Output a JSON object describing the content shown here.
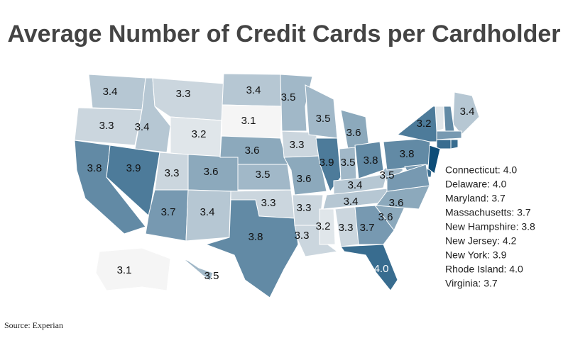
{
  "title": "Average Number of Credit Cards per Cardholder",
  "map": {
    "values": [
      3.4,
      3.3,
      3.8,
      3.9,
      3.4,
      3.3,
      3.2,
      3.3,
      3.7,
      3.6,
      3.4,
      3.4,
      3.1,
      3.6,
      3.5,
      3.3,
      3.8,
      3.5,
      3.3,
      3.6,
      3.3,
      3.3,
      3.5,
      3.9,
      3.6,
      3.5,
      3.8,
      3.4,
      3.4,
      3.2,
      3.3,
      3.7,
      4.0,
      3.6,
      3.6,
      3.5,
      3.8,
      3.2,
      3.4,
      3.1,
      3.5
    ],
    "value_labels": [
      "3.4",
      "3.3",
      "3.8",
      "3.9",
      "3.4",
      "3.3",
      "3.2",
      "3.3",
      "3.7",
      "3.6",
      "3.4",
      "3.4",
      "3.1",
      "3.6",
      "3.5",
      "3.3",
      "3.8",
      "3.5",
      "3.3",
      "3.6",
      "3.3",
      "3.3",
      "3.5",
      "3.9",
      "3.6",
      "3.5",
      "3.8",
      "3.4",
      "3.4",
      "3.2",
      "3.3",
      "3.7",
      "4.0",
      "3.6",
      "3.6",
      "3.5",
      "3.8",
      "3.2",
      "3.4",
      "3.1",
      "3.5"
    ]
  },
  "small_states": {
    "values": [
      4.0,
      4.0,
      3.7,
      3.7,
      3.8,
      4.2,
      3.9,
      4.0,
      3.7
    ],
    "labels": [
      "Connecticut: 4.0",
      "Delaware: 4.0",
      "Maryland: 3.7",
      "Massachusetts: 3.7",
      "New Hampshire: 3.8",
      "New Jersey: 4.2",
      "New York: 3.9",
      "Rhode Island: 4.0",
      "Virginia: 3.7"
    ]
  },
  "color_scale": {
    "low": "#f5f5f5",
    "high": "#0e4d78"
  },
  "source": "Source: Experian"
}
